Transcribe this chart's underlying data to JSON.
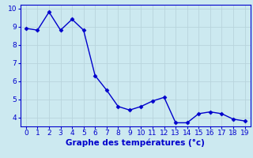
{
  "x": [
    0,
    1,
    2,
    3,
    4,
    5,
    6,
    7,
    8,
    9,
    10,
    11,
    12,
    13,
    14,
    15,
    16,
    17,
    18,
    19
  ],
  "y": [
    8.9,
    8.8,
    9.8,
    8.8,
    9.4,
    8.8,
    6.3,
    5.5,
    4.6,
    4.4,
    4.6,
    4.9,
    5.1,
    3.7,
    3.7,
    4.2,
    4.3,
    4.2,
    3.9,
    3.8
  ],
  "line_color": "#0000cc",
  "marker": "D",
  "marker_size": 2.5,
  "linewidth": 1.0,
  "xlabel": "Graphe des températures (°c)",
  "xlabel_fontsize": 7.5,
  "ylim": [
    3.5,
    10.2
  ],
  "xlim": [
    -0.5,
    19.5
  ],
  "yticks": [
    4,
    5,
    6,
    7,
    8,
    9,
    10
  ],
  "xticks": [
    0,
    1,
    2,
    3,
    4,
    5,
    6,
    7,
    8,
    9,
    10,
    11,
    12,
    13,
    14,
    15,
    16,
    17,
    18,
    19
  ],
  "tick_fontsize": 6.5,
  "bg_color": "#cce9f0",
  "grid_color": "#b8d4dc",
  "spine_color": "#0000cc",
  "xlabel_color": "#0000cc",
  "xlabel_bold": true
}
